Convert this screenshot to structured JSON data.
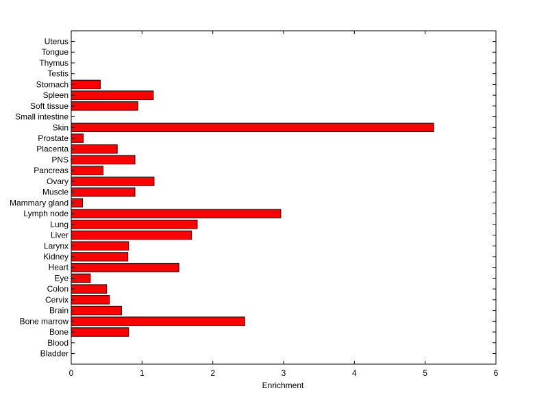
{
  "chart_data": {
    "type": "bar",
    "orientation": "horizontal",
    "title": "",
    "xlabel": "Enrichment",
    "ylabel": "",
    "xlim": [
      0,
      6
    ],
    "xticks": [
      0,
      1,
      2,
      3,
      4,
      5,
      6
    ],
    "grid": false,
    "legend": "none",
    "bar_color": "#ff0000",
    "categories": [
      "Bladder",
      "Blood",
      "Bone",
      "Bone marrow",
      "Brain",
      "Cervix",
      "Colon",
      "Eye",
      "Heart",
      "Kidney",
      "Larynx",
      "Liver",
      "Lung",
      "Lymph node",
      "Mammary gland",
      "Muscle",
      "Ovary",
      "Pancreas",
      "PNS",
      "Placenta",
      "Prostate",
      "Skin",
      "Small intestine",
      "Soft tissue",
      "Spleen",
      "Stomach",
      "Testis",
      "Thymus",
      "Tongue",
      "Uterus"
    ],
    "values": [
      0,
      0,
      0.81,
      2.45,
      0.71,
      0.54,
      0.5,
      0.27,
      1.52,
      0.8,
      0.81,
      1.7,
      1.78,
      2.96,
      0.16,
      0.9,
      1.17,
      0.45,
      0.9,
      0.65,
      0.17,
      5.12,
      0,
      0.94,
      1.16,
      0.41,
      0,
      0,
      0,
      0
    ]
  }
}
